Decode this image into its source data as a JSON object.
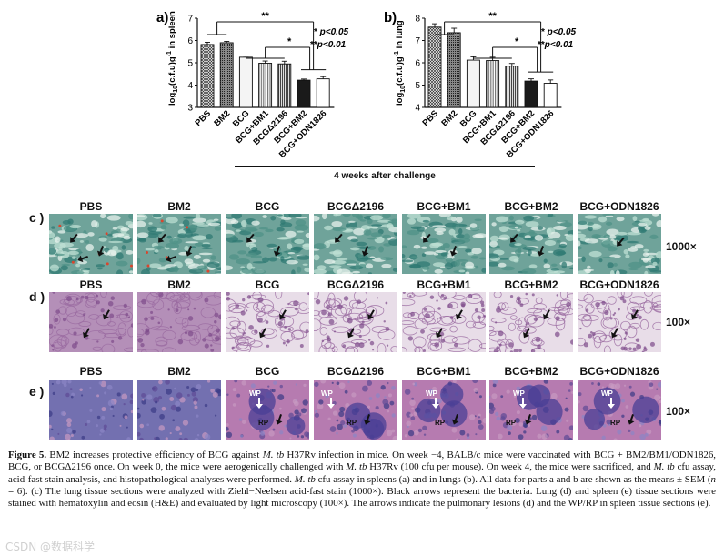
{
  "figure": {
    "challenge_label": "4 weeks after challenge",
    "legend": {
      "sig1_stars": "*",
      "sig1_text": "p<0.05",
      "sig2_stars": "**",
      "sig2_text": "p<0.01"
    }
  },
  "chart_data": [
    {
      "panel": "a)",
      "type": "bar",
      "ylabel": "log10(c.f.u)g-1 in spleen",
      "ylim": [
        3,
        7
      ],
      "yticks": [
        3,
        4,
        5,
        6,
        7
      ],
      "categories": [
        "PBS",
        "BM2",
        "BCG",
        "BCG+BM1",
        "BCGΔ2196",
        "BCG+BM2",
        "BCG+ODN1826"
      ],
      "values": [
        5.82,
        5.9,
        5.25,
        4.98,
        4.95,
        4.22,
        4.28
      ],
      "errors": [
        0.1,
        0.06,
        0.05,
        0.1,
        0.12,
        0.05,
        0.1
      ],
      "significance": [
        "**",
        "*"
      ]
    },
    {
      "panel": "b)",
      "type": "bar",
      "ylabel": "log10(c.f.u)g-1 in lung",
      "ylim": [
        4,
        8
      ],
      "yticks": [
        4,
        5,
        6,
        7,
        8
      ],
      "categories": [
        "PBS",
        "BM2",
        "BCG",
        "BCG+BM1",
        "BCGΔ2196",
        "BCG+BM2",
        "BCG+ODN1826"
      ],
      "values": [
        7.6,
        7.35,
        6.12,
        6.1,
        5.85,
        5.18,
        5.08
      ],
      "errors": [
        0.15,
        0.2,
        0.15,
        0.15,
        0.12,
        0.1,
        0.15
      ],
      "significance": [
        "**",
        "*"
      ]
    }
  ],
  "rows": {
    "c": {
      "letter": "c )",
      "labels": [
        "PBS",
        "BM2",
        "BCG",
        "BCGΔ2196",
        "BCG+BM1",
        "BCG+BM2",
        "BCG+ODN1826"
      ],
      "magnification": "1000×"
    },
    "d": {
      "letter": "d )",
      "labels": [
        "PBS",
        "BM2",
        "BCG",
        "BCGΔ2196",
        "BCG+BM1",
        "BCG+BM2",
        "BCG+ODN1826"
      ],
      "magnification": "100×"
    },
    "e": {
      "letter": "e )",
      "labels": [
        "PBS",
        "BM2",
        "BCG",
        "BCGΔ2196",
        "BCG+BM1",
        "BCG+BM2",
        "BCG+ODN1826"
      ],
      "magnification": "100×",
      "annotations": {
        "wp": "WP",
        "rp": "RP"
      }
    }
  },
  "caption": {
    "label": "Figure 5.",
    "t1": " BM2 increases protective efficiency of BCG against ",
    "mtb": "M. tb",
    "t2": " H37Rv infection in mice. On week −4, BALB/c mice were vaccinated with BCG + BM2/BM1/ODN1826, BCG, or BCGΔ2196 once. On week 0, the mice were aerogenically challenged with ",
    "t3": " H37Rv (100 cfu per mouse). On week 4, the mice were sacrificed, and ",
    "t4": " cfu assay, acid-fast stain analysis, and histopathological analyses were performed. ",
    "t5": " cfu assay in spleens (a) and in lungs (b). All data for parts a and b are shown as the means ± SEM (",
    "n": "n",
    "t6": " = 6). (c) The lung tissue sections were analyzed with Ziehl−Neelsen acid-fast stain (1000×). Black arrows represent the bacteria. Lung (d) and spleen (e) tissue sections were stained with hematoxylin and eosin (H&E) and evaluated by light microscopy (100×). The arrows indicate the pulmonary lesions (d) and the WP/RP in spleen tissue sections (e)."
  },
  "watermark": "CSDN @数据科学"
}
